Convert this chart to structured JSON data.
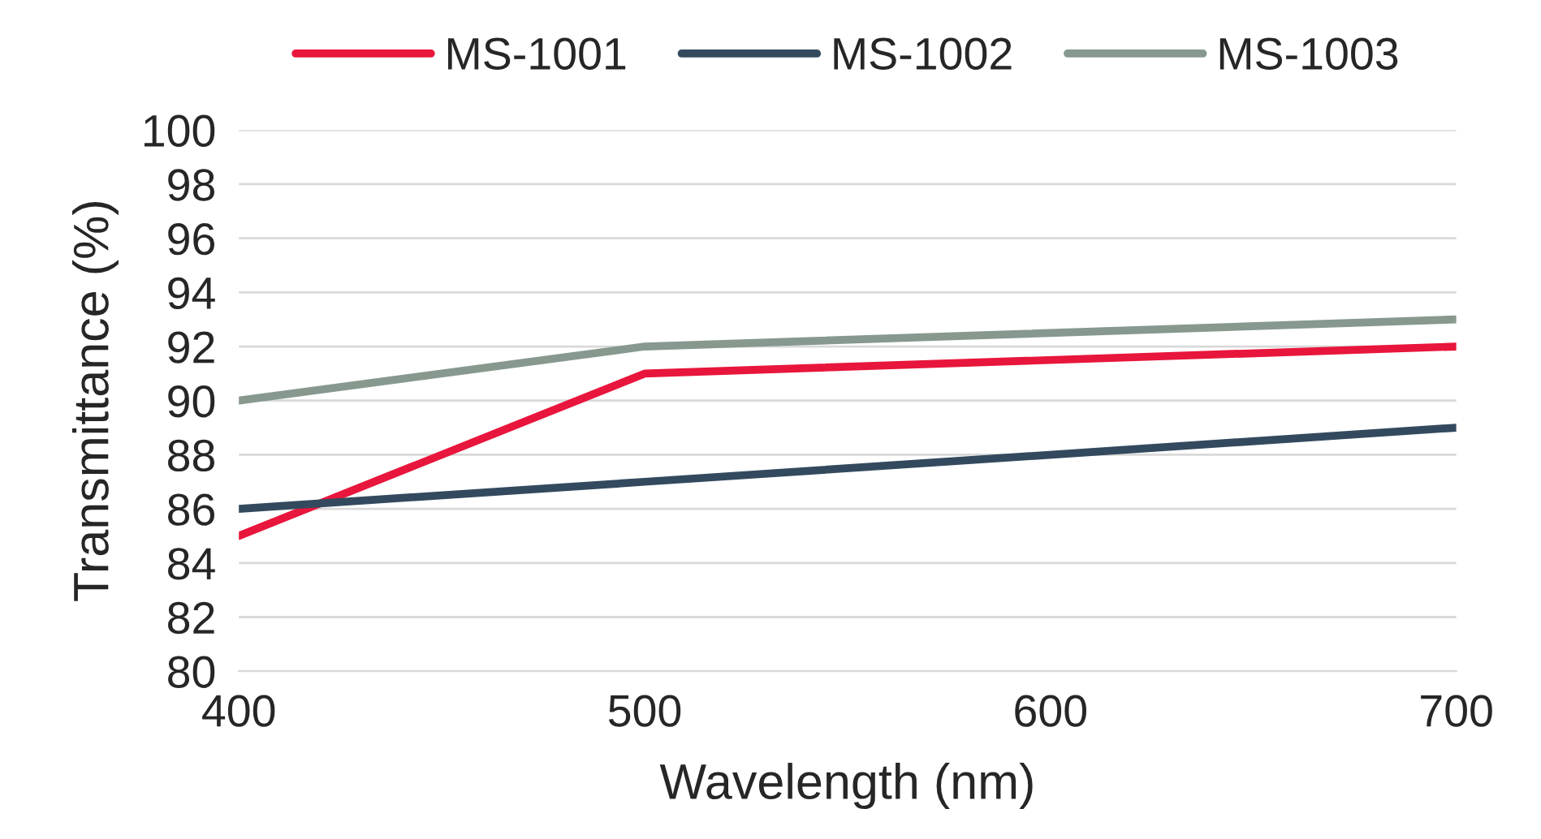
{
  "chart_data": {
    "type": "line",
    "xlabel": "Wavelength (nm)",
    "ylabel": "Transmittance (%)",
    "x": [
      400,
      500,
      700
    ],
    "series": [
      {
        "name": "MS-1001",
        "color": "#e8163c",
        "values": [
          85,
          91,
          92
        ]
      },
      {
        "name": "MS-1002",
        "color": "#334a5e",
        "values": [
          86,
          87,
          89
        ]
      },
      {
        "name": "MS-1003",
        "color": "#87998f",
        "values": [
          90,
          92,
          93
        ]
      }
    ],
    "xlim": [
      400,
      700
    ],
    "xticks": [
      400,
      500,
      600,
      700
    ],
    "ylim": [
      80,
      100
    ],
    "yticks": [
      80,
      82,
      84,
      86,
      88,
      90,
      92,
      94,
      96,
      98,
      100
    ],
    "grid": "y",
    "legend": "top",
    "marker": "none",
    "line_style": "solid"
  }
}
